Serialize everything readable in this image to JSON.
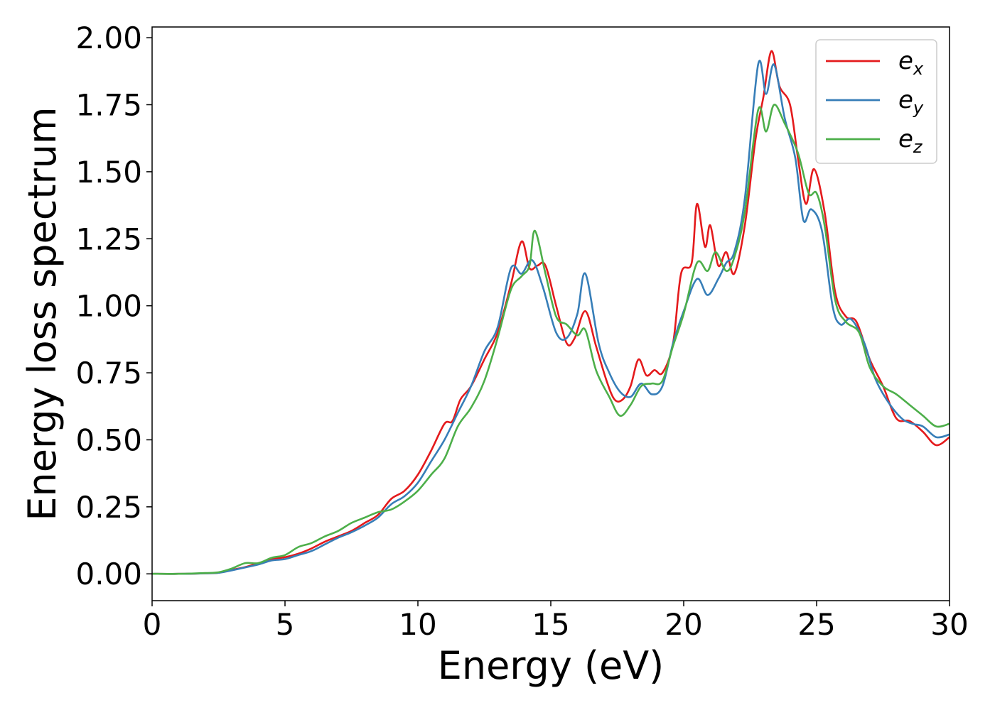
{
  "chart_data": {
    "type": "line",
    "title": "",
    "xlabel": "Energy (eV)",
    "ylabel": "Energy loss spectrum",
    "xlim": [
      0,
      30
    ],
    "ylim": [
      -0.1,
      2.04
    ],
    "xticks": [
      0,
      5,
      10,
      15,
      20,
      25,
      30
    ],
    "xtick_labels": [
      "0",
      "5",
      "10",
      "15",
      "20",
      "25",
      "30"
    ],
    "yticks": [
      0,
      0.25,
      0.5,
      0.75,
      1.0,
      1.25,
      1.5,
      1.75,
      2.0
    ],
    "ytick_labels": [
      "0.00",
      "0.25",
      "0.50",
      "0.75",
      "1.00",
      "1.25",
      "1.50",
      "1.75",
      "2.00"
    ],
    "grid": false,
    "legend_position": "top-right",
    "series": [
      {
        "name": "e_x",
        "label_base": "e",
        "label_sub": "x",
        "color": "#e41a1c",
        "points": [
          [
            0,
            0.0
          ],
          [
            1,
            0.0
          ],
          [
            2,
            0.002
          ],
          [
            2.5,
            0.004
          ],
          [
            3,
            0.015
          ],
          [
            3.5,
            0.025
          ],
          [
            4,
            0.04
          ],
          [
            4.5,
            0.055
          ],
          [
            5,
            0.062
          ],
          [
            5.5,
            0.075
          ],
          [
            6,
            0.095
          ],
          [
            6.5,
            0.12
          ],
          [
            7,
            0.14
          ],
          [
            7.5,
            0.16
          ],
          [
            8,
            0.19
          ],
          [
            8.5,
            0.22
          ],
          [
            9,
            0.28
          ],
          [
            9.5,
            0.31
          ],
          [
            10,
            0.37
          ],
          [
            10.5,
            0.46
          ],
          [
            11,
            0.56
          ],
          [
            11.3,
            0.57
          ],
          [
            11.6,
            0.65
          ],
          [
            12,
            0.7
          ],
          [
            12.5,
            0.8
          ],
          [
            13,
            0.9
          ],
          [
            13.5,
            1.08
          ],
          [
            13.9,
            1.24
          ],
          [
            14.2,
            1.14
          ],
          [
            14.5,
            1.15
          ],
          [
            14.8,
            1.15
          ],
          [
            15.2,
            1.0
          ],
          [
            15.6,
            0.86
          ],
          [
            15.9,
            0.88
          ],
          [
            16.3,
            0.98
          ],
          [
            16.7,
            0.85
          ],
          [
            17.1,
            0.72
          ],
          [
            17.4,
            0.65
          ],
          [
            17.7,
            0.65
          ],
          [
            18.0,
            0.7
          ],
          [
            18.3,
            0.8
          ],
          [
            18.6,
            0.74
          ],
          [
            18.9,
            0.76
          ],
          [
            19.2,
            0.75
          ],
          [
            19.6,
            0.86
          ],
          [
            19.9,
            1.12
          ],
          [
            20.3,
            1.16
          ],
          [
            20.5,
            1.38
          ],
          [
            20.8,
            1.22
          ],
          [
            21.0,
            1.3
          ],
          [
            21.3,
            1.15
          ],
          [
            21.6,
            1.2
          ],
          [
            21.9,
            1.12
          ],
          [
            22.3,
            1.3
          ],
          [
            22.7,
            1.62
          ],
          [
            23.0,
            1.78
          ],
          [
            23.3,
            1.95
          ],
          [
            23.6,
            1.82
          ],
          [
            24.0,
            1.75
          ],
          [
            24.3,
            1.55
          ],
          [
            24.6,
            1.38
          ],
          [
            24.9,
            1.51
          ],
          [
            25.3,
            1.35
          ],
          [
            25.7,
            1.05
          ],
          [
            26.1,
            0.96
          ],
          [
            26.5,
            0.94
          ],
          [
            27.0,
            0.8
          ],
          [
            27.5,
            0.7
          ],
          [
            28.0,
            0.58
          ],
          [
            28.5,
            0.57
          ],
          [
            29.0,
            0.53
          ],
          [
            29.5,
            0.48
          ],
          [
            30.0,
            0.51
          ]
        ]
      },
      {
        "name": "e_y",
        "label_base": "e",
        "label_sub": "y",
        "color": "#377eb8",
        "points": [
          [
            0,
            0.0
          ],
          [
            1,
            0.0
          ],
          [
            2,
            0.002
          ],
          [
            2.5,
            0.004
          ],
          [
            3,
            0.013
          ],
          [
            3.5,
            0.024
          ],
          [
            4,
            0.035
          ],
          [
            4.5,
            0.05
          ],
          [
            5,
            0.055
          ],
          [
            5.5,
            0.07
          ],
          [
            6,
            0.085
          ],
          [
            6.5,
            0.11
          ],
          [
            7,
            0.135
          ],
          [
            7.5,
            0.155
          ],
          [
            8,
            0.18
          ],
          [
            8.5,
            0.21
          ],
          [
            9,
            0.26
          ],
          [
            9.5,
            0.29
          ],
          [
            10,
            0.34
          ],
          [
            10.5,
            0.42
          ],
          [
            11,
            0.5
          ],
          [
            11.5,
            0.6
          ],
          [
            12,
            0.7
          ],
          [
            12.5,
            0.83
          ],
          [
            13,
            0.92
          ],
          [
            13.5,
            1.14
          ],
          [
            13.9,
            1.12
          ],
          [
            14.3,
            1.17
          ],
          [
            14.7,
            1.07
          ],
          [
            15.2,
            0.9
          ],
          [
            15.6,
            0.88
          ],
          [
            16.0,
            0.97
          ],
          [
            16.3,
            1.12
          ],
          [
            16.8,
            0.86
          ],
          [
            17.2,
            0.75
          ],
          [
            17.6,
            0.68
          ],
          [
            18.0,
            0.66
          ],
          [
            18.4,
            0.71
          ],
          [
            18.8,
            0.67
          ],
          [
            19.2,
            0.7
          ],
          [
            19.6,
            0.86
          ],
          [
            20.0,
            0.98
          ],
          [
            20.5,
            1.1
          ],
          [
            20.9,
            1.04
          ],
          [
            21.3,
            1.1
          ],
          [
            21.6,
            1.16
          ],
          [
            21.9,
            1.2
          ],
          [
            22.3,
            1.4
          ],
          [
            22.8,
            1.9
          ],
          [
            23.1,
            1.79
          ],
          [
            23.4,
            1.9
          ],
          [
            23.8,
            1.7
          ],
          [
            24.2,
            1.55
          ],
          [
            24.5,
            1.32
          ],
          [
            24.8,
            1.36
          ],
          [
            25.2,
            1.28
          ],
          [
            25.6,
            1.0
          ],
          [
            25.9,
            0.93
          ],
          [
            26.3,
            0.95
          ],
          [
            26.8,
            0.86
          ],
          [
            27.2,
            0.73
          ],
          [
            27.7,
            0.64
          ],
          [
            28.2,
            0.58
          ],
          [
            28.6,
            0.56
          ],
          [
            29.0,
            0.55
          ],
          [
            29.5,
            0.51
          ],
          [
            30.0,
            0.52
          ]
        ]
      },
      {
        "name": "e_z",
        "label_base": "e",
        "label_sub": "z",
        "color": "#4daf4a",
        "points": [
          [
            0,
            0.0
          ],
          [
            1,
            0.0
          ],
          [
            2,
            0.003
          ],
          [
            2.5,
            0.006
          ],
          [
            3,
            0.02
          ],
          [
            3.5,
            0.04
          ],
          [
            4,
            0.04
          ],
          [
            4.5,
            0.06
          ],
          [
            5,
            0.07
          ],
          [
            5.5,
            0.1
          ],
          [
            6,
            0.115
          ],
          [
            6.5,
            0.14
          ],
          [
            7,
            0.16
          ],
          [
            7.5,
            0.19
          ],
          [
            8,
            0.21
          ],
          [
            8.5,
            0.23
          ],
          [
            9,
            0.24
          ],
          [
            9.5,
            0.27
          ],
          [
            10,
            0.31
          ],
          [
            10.5,
            0.37
          ],
          [
            11,
            0.43
          ],
          [
            11.5,
            0.55
          ],
          [
            12,
            0.62
          ],
          [
            12.5,
            0.72
          ],
          [
            13,
            0.88
          ],
          [
            13.5,
            1.06
          ],
          [
            13.9,
            1.11
          ],
          [
            14.2,
            1.15
          ],
          [
            14.4,
            1.28
          ],
          [
            14.8,
            1.12
          ],
          [
            15.2,
            0.96
          ],
          [
            15.6,
            0.93
          ],
          [
            16.0,
            0.89
          ],
          [
            16.3,
            0.91
          ],
          [
            16.7,
            0.76
          ],
          [
            17.2,
            0.66
          ],
          [
            17.6,
            0.59
          ],
          [
            18.0,
            0.63
          ],
          [
            18.4,
            0.7
          ],
          [
            18.8,
            0.71
          ],
          [
            19.2,
            0.72
          ],
          [
            19.6,
            0.85
          ],
          [
            20.0,
            0.97
          ],
          [
            20.5,
            1.16
          ],
          [
            20.9,
            1.13
          ],
          [
            21.2,
            1.2
          ],
          [
            21.6,
            1.13
          ],
          [
            21.9,
            1.18
          ],
          [
            22.3,
            1.35
          ],
          [
            22.8,
            1.73
          ],
          [
            23.1,
            1.65
          ],
          [
            23.4,
            1.75
          ],
          [
            23.8,
            1.68
          ],
          [
            24.3,
            1.57
          ],
          [
            24.7,
            1.42
          ],
          [
            25.0,
            1.42
          ],
          [
            25.3,
            1.3
          ],
          [
            25.7,
            1.02
          ],
          [
            26.1,
            0.94
          ],
          [
            26.6,
            0.9
          ],
          [
            27.0,
            0.77
          ],
          [
            27.5,
            0.7
          ],
          [
            28.0,
            0.67
          ],
          [
            28.5,
            0.63
          ],
          [
            29.0,
            0.59
          ],
          [
            29.5,
            0.55
          ],
          [
            30.0,
            0.56
          ]
        ]
      }
    ]
  }
}
